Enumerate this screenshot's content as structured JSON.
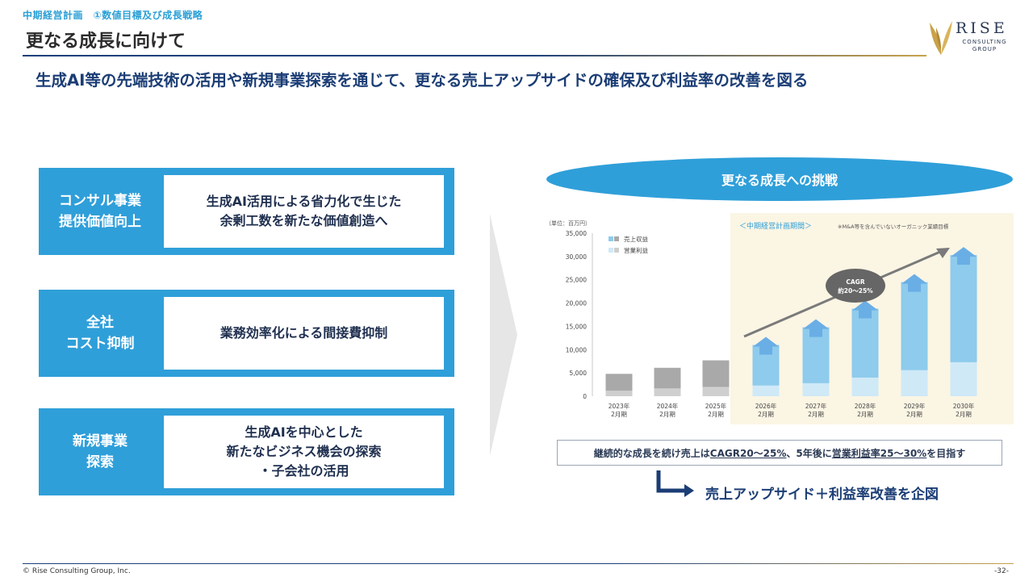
{
  "header": {
    "breadcrumb": "中期経営計画　①数値目標及び成長戦略",
    "title": "更なる成長に向けて",
    "subtitle": "生成AI等の先端技術の活用や新規事業探索を通じて、更なる売上アップサイドの確保及び利益率の改善を図る"
  },
  "logo": {
    "name": "RISE",
    "sub": "CONSULTING GROUP"
  },
  "cards": [
    {
      "label": "コンサル事業\n提供価値向上",
      "body": "生成AI活用による省力化で生じた\n余剰工数を新たな価値創造へ"
    },
    {
      "label": "全社\nコスト抑制",
      "body": "業務効率化による間接費抑制"
    },
    {
      "label": "新規事業\n探索",
      "body": "生成AIを中心とした\n新たなビジネス機会の探索\n・子会社の活用"
    }
  ],
  "challenge_title": "更なる成長への挑戦",
  "chart_data": {
    "type": "bar",
    "unit_label": "（単位：百万円）",
    "period_label": "＜中期経営計画期間＞",
    "note": "※M&A等を含んでいないオーガニック業績目標",
    "cagr_label": [
      "CAGR",
      "約20～25%"
    ],
    "categories": [
      "2023年\n2月期",
      "2024年\n2月期",
      "2025年\n2月期",
      "2026年\n2月期",
      "2027年\n2月期",
      "2028年\n2月期",
      "2029年\n2月期",
      "2030年\n2月期"
    ],
    "series": [
      {
        "name": "売上収益",
        "values": [
          4800,
          6100,
          7700,
          11000,
          14800,
          18800,
          24500,
          30300
        ]
      },
      {
        "name": "営業利益",
        "values": [
          1200,
          1700,
          2000,
          2300,
          2800,
          4000,
          5600,
          7300
        ]
      }
    ],
    "yticks": [
      "35,000",
      "30,000",
      "25,000",
      "20,000",
      "15,000",
      "10,000",
      "5,000",
      "0"
    ],
    "ylim": [
      0,
      35000
    ],
    "colors": {
      "revenue_actual": "#a9a9a9",
      "profit_actual": "#cfcfcf",
      "revenue_plan": "#8ecbec",
      "profit_plan": "#cfe9f7",
      "arrow_up": "#6aaee6",
      "trend": "#7a7a7a",
      "plan_bg": "#fbf5e4"
    }
  },
  "note_text": {
    "pre": "継続的な成長を続け売上は",
    "cagr": "CAGR20～25%",
    "mid": "、5年後に",
    "margin": "営業利益率25～30%",
    "post": "を目指す"
  },
  "conclusion": "売上アップサイド＋利益率改善を企図",
  "footer": {
    "copyright": "© Rise Consulting Group, Inc.",
    "page": "-32-"
  }
}
